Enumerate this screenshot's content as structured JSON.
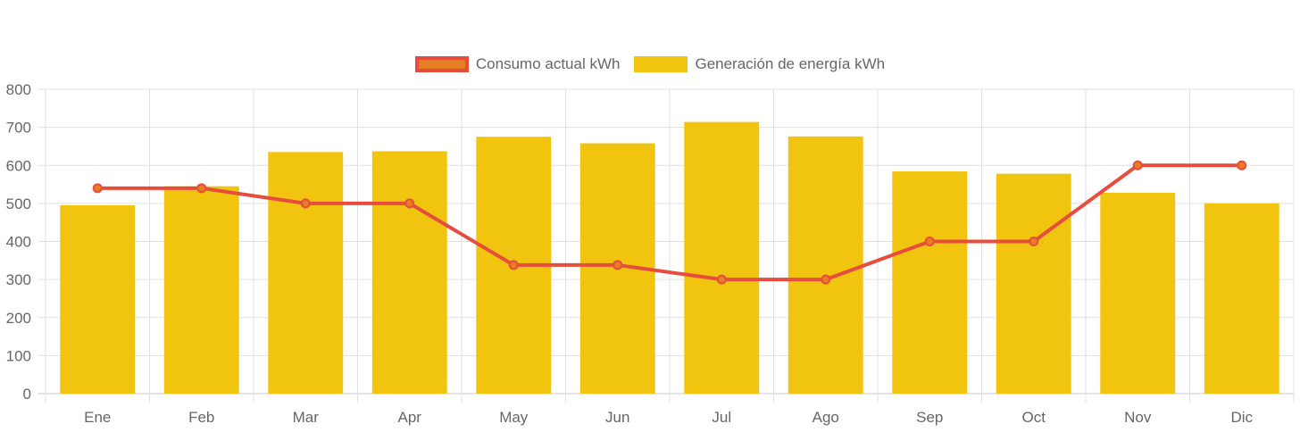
{
  "chart_data": {
    "type": "bar",
    "categories": [
      "Ene",
      "Feb",
      "Mar",
      "Apr",
      "May",
      "Jun",
      "Jul",
      "Ago",
      "Sep",
      "Oct",
      "Nov",
      "Dic"
    ],
    "series": [
      {
        "name": "Consumo actual kWh",
        "type": "line",
        "color": "#e74c3c",
        "fill": "#e67e22",
        "values": [
          540,
          540,
          500,
          500,
          338,
          338,
          300,
          300,
          400,
          400,
          600,
          600
        ]
      },
      {
        "name": "Generación de energía kWh",
        "type": "bar",
        "color": "#f1c40f",
        "values": [
          495,
          545,
          635,
          637,
          675,
          658,
          714,
          676,
          584,
          578,
          528,
          500
        ]
      }
    ],
    "ylim": [
      0,
      800
    ],
    "yticks": [
      0,
      100,
      200,
      300,
      400,
      500,
      600,
      700,
      800
    ],
    "grid": true,
    "legend_position": "top-center",
    "title": "",
    "xlabel": "",
    "ylabel": ""
  }
}
